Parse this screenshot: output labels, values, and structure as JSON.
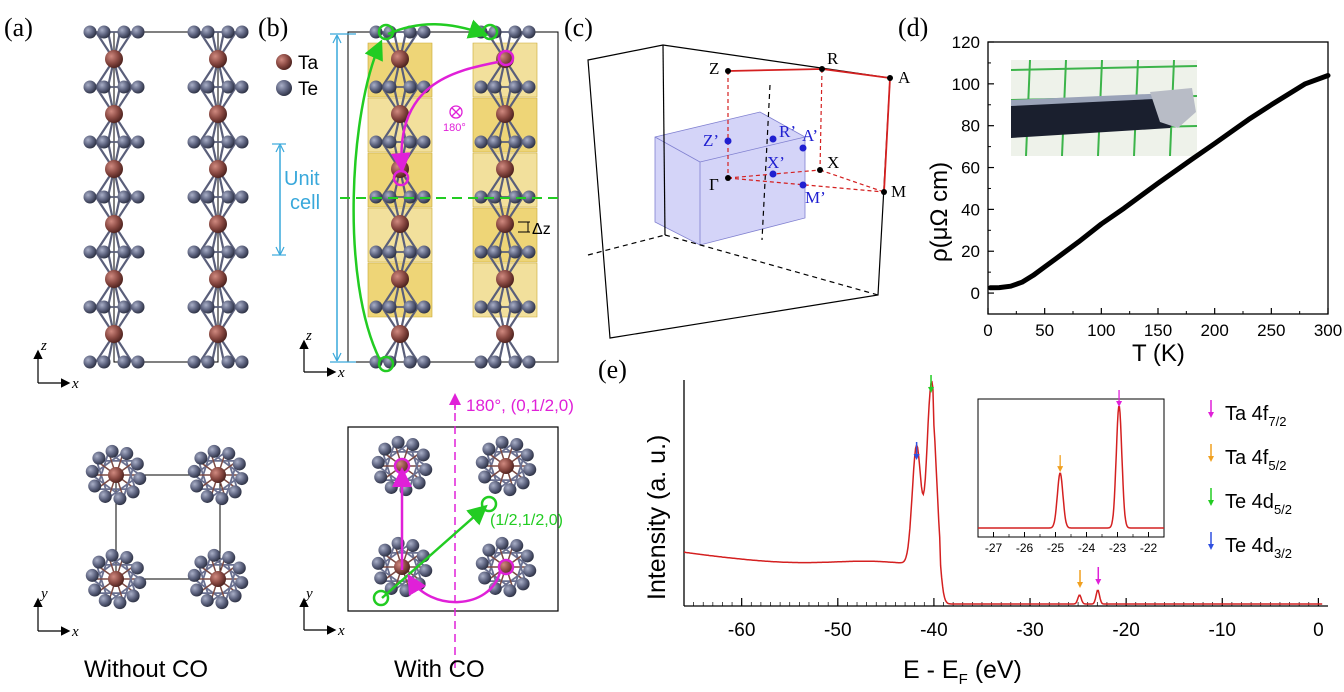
{
  "panels": {
    "a": "(a)",
    "b": "(b)",
    "c": "(c)",
    "d": "(d)",
    "e": "(e)"
  },
  "panel_a": {
    "axis_z": "z",
    "axis_x": "x",
    "axis_y": "y",
    "axis_x2": "x",
    "caption": "Without CO"
  },
  "panel_b": {
    "legend_ta": "Ta",
    "legend_te": "Te",
    "unit_cell_1": "Unit",
    "unit_cell_2": "cell",
    "rot_label": "180°",
    "dz_label": "Δz",
    "axis_z": "z",
    "axis_x": "x",
    "axis_y": "y",
    "axis_x2": "x",
    "symmetry_label": "180°, (0,1/2,0)",
    "translation_label": "(1/2,1/2,0)",
    "caption": "With CO"
  },
  "panel_c": {
    "points": {
      "Z": "Z",
      "R": "R",
      "A": "A",
      "X": "X",
      "M": "M",
      "Gamma": "Γ",
      "Zp": "Z’",
      "Rp": "R’",
      "Ap": "A’",
      "Xp": "X’",
      "Mp": "M’"
    }
  },
  "colors": {
    "ta": "#8b4a43",
    "te": "#5e6480",
    "green": "#22cc22",
    "magenta": "#e020d8",
    "blue": "#39a8db",
    "gold": "#e8c74a",
    "red": "#d42020",
    "kblue": "#2020d0"
  },
  "chart_data": [
    {
      "type": "line",
      "title": "",
      "xlabel": "T (K)",
      "ylabel": "ρ(μΩ cm)",
      "xlim": [
        0,
        300
      ],
      "ylim": [
        -10,
        120
      ],
      "xticks": [
        0,
        50,
        100,
        150,
        200,
        250,
        300
      ],
      "yticks": [
        0,
        20,
        40,
        60,
        80,
        100,
        120
      ],
      "series": [
        {
          "x": [
            2,
            10,
            20,
            30,
            40,
            50,
            60,
            80,
            100,
            120,
            150,
            180,
            200,
            230,
            250,
            280,
            300
          ],
          "y": [
            2.5,
            2.6,
            3.3,
            5.2,
            8.5,
            12.5,
            16.5,
            24.5,
            33,
            40.5,
            52.5,
            64,
            71.5,
            83,
            90,
            100,
            104
          ]
        }
      ]
    },
    {
      "type": "line",
      "title": "",
      "xlabel": "E - E",
      "xlabel_sub": "F",
      "xlabel_unit": " (eV)",
      "ylabel": "Intensity (a. u.)",
      "xlim": [
        -66,
        1
      ],
      "xticks": [
        -60,
        -50,
        -40,
        -30,
        -20,
        -10,
        0
      ],
      "legend": [
        {
          "label": "Ta 4f",
          "sub": "7/2",
          "color": "#e020d8"
        },
        {
          "label": "Ta 4f",
          "sub": "5/2",
          "color": "#f0a020"
        },
        {
          "label": "Te 4d",
          "sub": "5/2",
          "color": "#22cc22"
        },
        {
          "label": "Te 4d",
          "sub": "3/2",
          "color": "#3050e0"
        }
      ],
      "peaks": [
        {
          "x": -41.8,
          "label": "Te 4d3/2"
        },
        {
          "x": -40.3,
          "label": "Te 4d5/2"
        },
        {
          "x": -24.8,
          "label": "Ta 4f5/2"
        },
        {
          "x": -22.9,
          "label": "Ta 4f7/2"
        }
      ],
      "inset": {
        "xlim": [
          -27.5,
          -21.5
        ],
        "xticks": [
          -27,
          -26,
          -25,
          -24,
          -23,
          -22
        ],
        "tick_labels": [
          "-27",
          "-26",
          "-25",
          "-24",
          "-23",
          "-22"
        ],
        "peaks": [
          {
            "x": -24.85,
            "height": 0.45
          },
          {
            "x": -22.95,
            "height": 1.0
          }
        ]
      }
    }
  ]
}
